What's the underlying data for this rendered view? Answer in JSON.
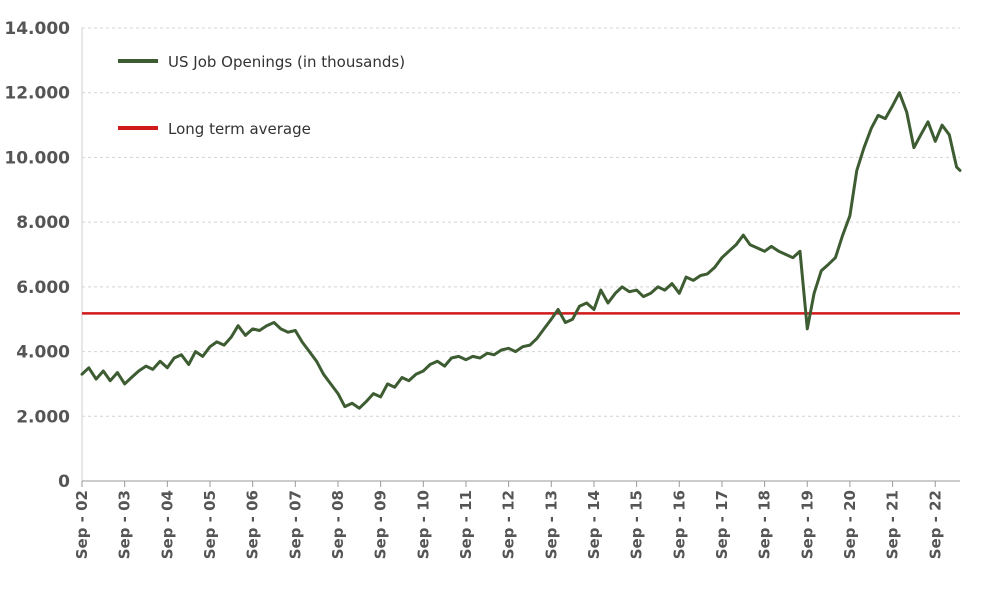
{
  "chart_data": {
    "type": "line",
    "title": "",
    "xlabel": "",
    "ylabel": "",
    "ylim": [
      0,
      14000
    ],
    "yticks": [
      0,
      2000,
      4000,
      6000,
      8000,
      10000,
      12000,
      14000
    ],
    "ytick_labels": [
      "0",
      "2.000",
      "4.000",
      "6.000",
      "8.000",
      "10.000",
      "12.000",
      "14.000"
    ],
    "xtick_labels": [
      "Sep - 02",
      "Sep - 03",
      "Sep - 04",
      "Sep - 05",
      "Sep - 06",
      "Sep - 07",
      "Sep - 08",
      "Sep - 09",
      "Sep - 10",
      "Sep - 11",
      "Sep - 12",
      "Sep - 13",
      "Sep - 14",
      "Sep - 15",
      "Sep - 16",
      "Sep - 17",
      "Sep - 18",
      "Sep - 19",
      "Sep - 20",
      "Sep - 21",
      "Sep - 22"
    ],
    "xlim": [
      2002.67,
      2023.25
    ],
    "grid": "horizontal dashed",
    "legend_position": "top-left",
    "series": [
      {
        "name": "US Job Openings (in thousands)",
        "color": "#3d5c32",
        "x": [
          2002.67,
          2002.83,
          2003.0,
          2003.17,
          2003.33,
          2003.5,
          2003.67,
          2003.83,
          2004.0,
          2004.17,
          2004.33,
          2004.5,
          2004.67,
          2004.83,
          2005.0,
          2005.17,
          2005.33,
          2005.5,
          2005.67,
          2005.83,
          2006.0,
          2006.17,
          2006.33,
          2006.5,
          2006.67,
          2006.83,
          2007.0,
          2007.17,
          2007.33,
          2007.5,
          2007.67,
          2007.83,
          2008.0,
          2008.17,
          2008.33,
          2008.5,
          2008.67,
          2008.83,
          2009.0,
          2009.17,
          2009.33,
          2009.5,
          2009.67,
          2009.83,
          2010.0,
          2010.17,
          2010.33,
          2010.5,
          2010.67,
          2010.83,
          2011.0,
          2011.17,
          2011.33,
          2011.5,
          2011.67,
          2011.83,
          2012.0,
          2012.17,
          2012.33,
          2012.5,
          2012.67,
          2012.83,
          2013.0,
          2013.17,
          2013.33,
          2013.5,
          2013.67,
          2013.83,
          2014.0,
          2014.17,
          2014.33,
          2014.5,
          2014.67,
          2014.83,
          2015.0,
          2015.17,
          2015.33,
          2015.5,
          2015.67,
          2015.83,
          2016.0,
          2016.17,
          2016.33,
          2016.5,
          2016.67,
          2016.83,
          2017.0,
          2017.17,
          2017.33,
          2017.5,
          2017.67,
          2017.83,
          2018.0,
          2018.17,
          2018.33,
          2018.5,
          2018.67,
          2018.83,
          2019.0,
          2019.17,
          2019.33,
          2019.5,
          2019.67,
          2019.83,
          2020.0,
          2020.17,
          2020.33,
          2020.5,
          2020.67,
          2020.83,
          2021.0,
          2021.17,
          2021.33,
          2021.5,
          2021.67,
          2021.83,
          2022.0,
          2022.17,
          2022.33,
          2022.5,
          2022.67,
          2022.83,
          2023.0,
          2023.17,
          2023.25
        ],
        "values": [
          3300,
          3500,
          3150,
          3400,
          3100,
          3350,
          3000,
          3200,
          3400,
          3550,
          3450,
          3700,
          3500,
          3800,
          3900,
          3600,
          4000,
          3850,
          4150,
          4300,
          4200,
          4450,
          4800,
          4500,
          4700,
          4650,
          4800,
          4900,
          4700,
          4600,
          4650,
          4300,
          4000,
          3700,
          3300,
          3000,
          2700,
          2300,
          2400,
          2250,
          2450,
          2700,
          2600,
          3000,
          2900,
          3200,
          3100,
          3300,
          3400,
          3600,
          3700,
          3550,
          3800,
          3850,
          3750,
          3850,
          3800,
          3950,
          3900,
          4050,
          4100,
          4000,
          4150,
          4200,
          4400,
          4700,
          5000,
          5300,
          4900,
          5000,
          5400,
          5500,
          5300,
          5900,
          5500,
          5800,
          6000,
          5850,
          5900,
          5700,
          5800,
          6000,
          5900,
          6100,
          5800,
          6300,
          6200,
          6350,
          6400,
          6600,
          6900,
          7100,
          7300,
          7600,
          7300,
          7200,
          7100,
          7250,
          7100,
          7000,
          6900,
          7100,
          4700,
          5800,
          6500,
          6700,
          6900,
          7600,
          8200,
          9600,
          10300,
          10900,
          11300,
          11200,
          11600,
          12000,
          11400,
          10300,
          10700,
          11100,
          10500,
          11000,
          10700,
          9700,
          9600
        ]
      },
      {
        "name": "Long term average",
        "color": "#d01919",
        "constant": 5180
      }
    ]
  }
}
